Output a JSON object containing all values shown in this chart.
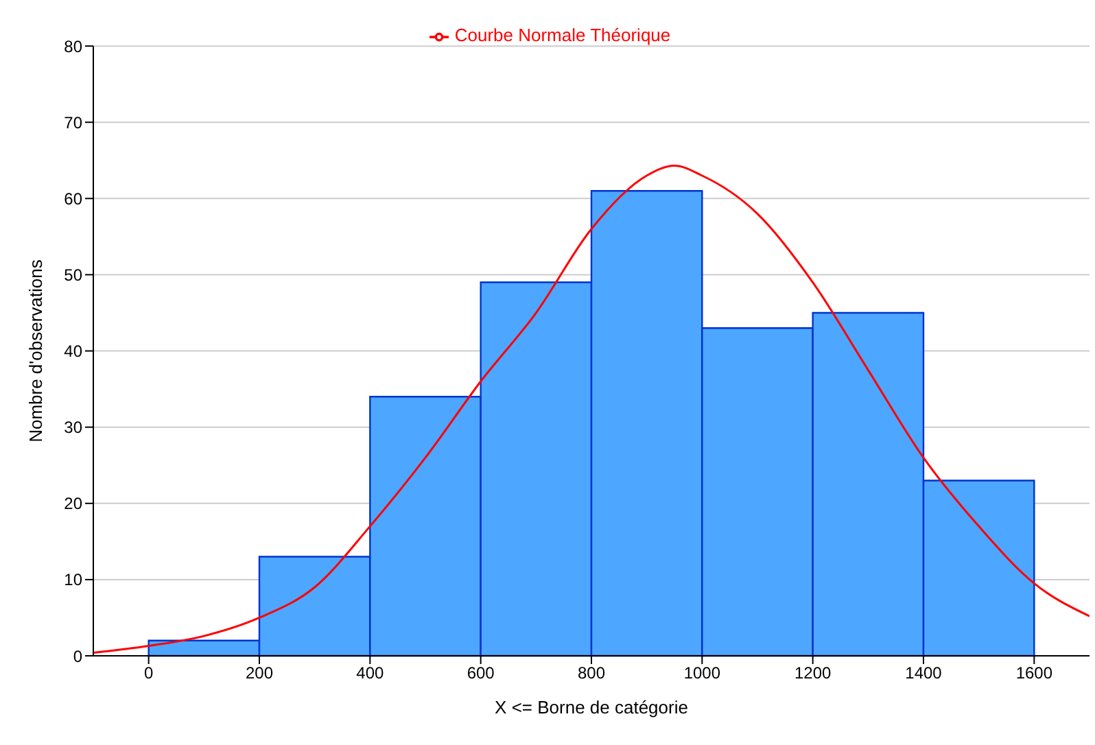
{
  "chart_data": {
    "type": "histogram",
    "xlabel": "X <= Borne de catégorie",
    "ylabel": "Nombre d'observations",
    "bins": [
      0,
      200,
      400,
      600,
      800,
      1000,
      1200,
      1400,
      1600
    ],
    "values": [
      2,
      13,
      34,
      49,
      61,
      43,
      45,
      23
    ],
    "color": "#4da6ff",
    "series": [
      {
        "type": "line",
        "name": "Courbe Normale Théorique",
        "color": "#ff0000",
        "x": [
          -100,
          0,
          100,
          200,
          300,
          400,
          500,
          600,
          700,
          800,
          900,
          950,
          1000,
          1100,
          1200,
          1300,
          1400,
          1500,
          1600,
          1700
        ],
        "values": [
          0.4,
          1.3,
          2.6,
          5,
          9,
          17,
          26,
          36,
          45,
          56,
          63,
          64.3,
          63,
          58,
          49,
          37.5,
          26,
          17,
          9.5,
          5.2
        ]
      }
    ],
    "xlim": [
      -100,
      1700
    ],
    "ylim": [
      0,
      80
    ],
    "xticks": [
      0,
      200,
      400,
      600,
      800,
      1000,
      1200,
      1400,
      1600
    ],
    "yticks": [
      0,
      10,
      20,
      30,
      40,
      50,
      60,
      70,
      80
    ],
    "grid": "y",
    "legend": "top"
  }
}
